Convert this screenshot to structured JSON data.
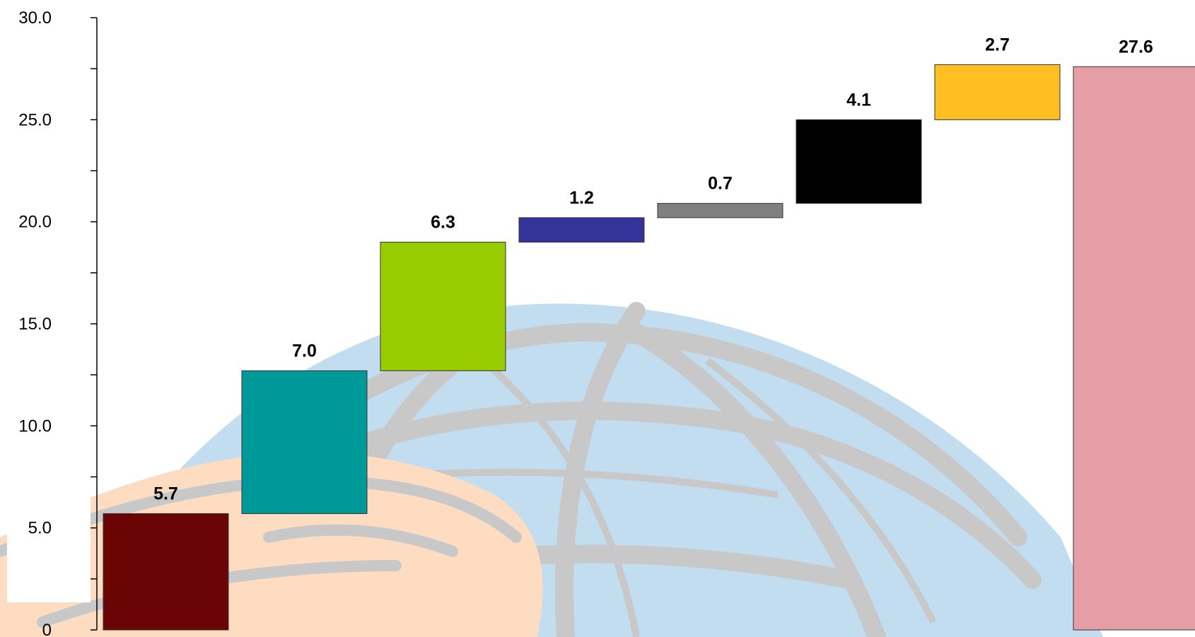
{
  "chart_data": {
    "type": "waterfall",
    "title": "",
    "xlabel": "",
    "ylabel": "",
    "ylim": [
      0,
      30
    ],
    "grid": false,
    "legend": "none",
    "y_ticks": [
      "0",
      "5.0",
      "10.0",
      "15.0",
      "20.0",
      "25.0",
      "30.0"
    ],
    "y_tick_values": [
      0,
      5,
      10,
      15,
      20,
      25,
      30
    ],
    "bars": [
      {
        "base": 0.0,
        "value": 5.7,
        "label": "5.7",
        "color": "#6b0505"
      },
      {
        "base": 5.7,
        "value": 7.0,
        "label": "7.0",
        "color": "#009999"
      },
      {
        "base": 12.7,
        "value": 6.3,
        "label": "6.3",
        "color": "#99cc00"
      },
      {
        "base": 19.0,
        "value": 1.2,
        "label": "1.2",
        "color": "#333399"
      },
      {
        "base": 20.2,
        "value": 0.7,
        "label": "0.7",
        "color": "#808080"
      },
      {
        "base": 20.9,
        "value": 4.1,
        "label": "4.1",
        "color": "#000000"
      },
      {
        "base": 25.0,
        "value": 2.7,
        "label": "2.7",
        "color": "#ffbf22"
      },
      {
        "base": 0.0,
        "value": 27.6,
        "label": "27.6",
        "color": "#e59ea5"
      }
    ]
  }
}
